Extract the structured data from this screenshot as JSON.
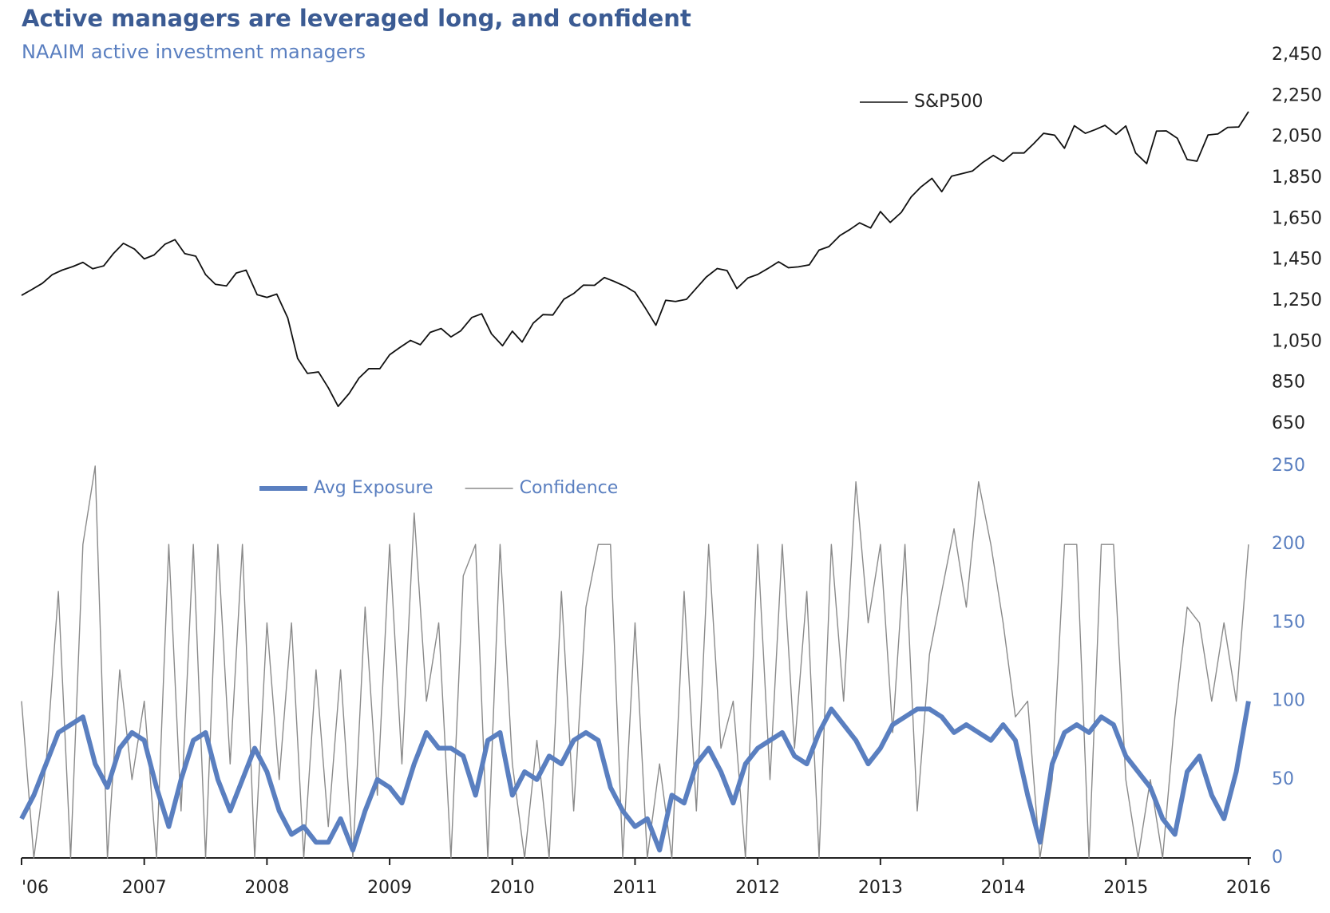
{
  "chart_data": [
    {
      "type": "line",
      "title": "Active managers are leveraged  long, and confident",
      "subtitle": "NAAIM active investment managers",
      "x": [
        2006,
        2006.08,
        2006.17,
        2006.25,
        2006.33,
        2006.42,
        2006.5,
        2006.58,
        2006.67,
        2006.75,
        2006.83,
        2006.92,
        2007,
        2007.08,
        2007.17,
        2007.25,
        2007.33,
        2007.42,
        2007.5,
        2007.58,
        2007.67,
        2007.75,
        2007.83,
        2007.92,
        2008,
        2008.08,
        2008.17,
        2008.25,
        2008.33,
        2008.42,
        2008.5,
        2008.58,
        2008.67,
        2008.75,
        2008.83,
        2008.92,
        2009,
        2009.08,
        2009.17,
        2009.25,
        2009.33,
        2009.42,
        2009.5,
        2009.58,
        2009.67,
        2009.75,
        2009.83,
        2009.92,
        2010,
        2010.08,
        2010.17,
        2010.25,
        2010.33,
        2010.42,
        2010.5,
        2010.58,
        2010.67,
        2010.75,
        2010.83,
        2010.92,
        2011,
        2011.08,
        2011.17,
        2011.25,
        2011.33,
        2011.42,
        2011.5,
        2011.58,
        2011.67,
        2011.75,
        2011.83,
        2011.92,
        2012,
        2012.08,
        2012.17,
        2012.25,
        2012.33,
        2012.42,
        2012.5,
        2012.58,
        2012.67,
        2012.75,
        2012.83,
        2012.92,
        2013,
        2013.08,
        2013.17,
        2013.25,
        2013.33,
        2013.42,
        2013.5,
        2013.58,
        2013.67,
        2013.75,
        2013.83,
        2013.92,
        2014,
        2014.08,
        2014.17,
        2014.25,
        2014.33,
        2014.42,
        2014.5,
        2014.58,
        2014.67,
        2014.75,
        2014.83,
        2014.92,
        2015,
        2015.08,
        2015.17,
        2015.25,
        2015.33,
        2015.42,
        2015.5,
        2015.58,
        2015.67,
        2015.75,
        2015.83,
        2015.92,
        2016
      ],
      "series": [
        {
          "name": "S&P500",
          "color": "#111111",
          "values": [
            1277,
            1304,
            1336,
            1378,
            1400,
            1418,
            1438,
            1407,
            1421,
            1482,
            1531,
            1503,
            1455,
            1474,
            1527,
            1549,
            1481,
            1468,
            1378,
            1331,
            1323,
            1386,
            1400,
            1280,
            1267,
            1283,
            1166,
            969,
            896,
            903,
            826,
            735,
            798,
            873,
            919,
            919,
            987,
            1021,
            1057,
            1036,
            1096,
            1115,
            1074,
            1104,
            1169,
            1187,
            1089,
            1031,
            1102,
            1049,
            1141,
            1183,
            1181,
            1258,
            1286,
            1327,
            1326,
            1364,
            1345,
            1321,
            1292,
            1219,
            1131,
            1253,
            1247,
            1258,
            1312,
            1366,
            1408,
            1398,
            1310,
            1362,
            1379,
            1407,
            1441,
            1412,
            1416,
            1426,
            1498,
            1515,
            1569,
            1598,
            1631,
            1606,
            1686,
            1633,
            1682,
            1757,
            1806,
            1848,
            1783,
            1859,
            1872,
            1884,
            1924,
            1960,
            1931,
            1972,
            1972,
            2018,
            2068,
            2059,
            1995,
            2105,
            2068,
            2086,
            2107,
            2063,
            2104,
            1972,
            1920,
            2079,
            2080,
            2044,
            1940,
            1932,
            2060,
            2065,
            2097,
            2099,
            2174
          ]
        }
      ],
      "xlim": [
        2006,
        2016.02
      ],
      "ylim": [
        650,
        2450
      ],
      "yticks": [
        {
          "value": 2450,
          "label": "2,450"
        },
        {
          "value": 2250,
          "label": "2,250"
        },
        {
          "value": 2050,
          "label": "2,050"
        },
        {
          "value": 1850,
          "label": "1,850"
        },
        {
          "value": 1650,
          "label": "1,650"
        },
        {
          "value": 1450,
          "label": "1,450"
        },
        {
          "value": 1250,
          "label": "1,250"
        },
        {
          "value": 1050,
          "label": "1,050"
        },
        850,
        650
      ]
    },
    {
      "type": "line",
      "x": [
        2006,
        2006.1,
        2006.2,
        2006.3,
        2006.4,
        2006.5,
        2006.6,
        2006.7,
        2006.8,
        2006.9,
        2007,
        2007.1,
        2007.2,
        2007.3,
        2007.4,
        2007.5,
        2007.6,
        2007.7,
        2007.8,
        2007.9,
        2008,
        2008.1,
        2008.2,
        2008.3,
        2008.4,
        2008.5,
        2008.6,
        2008.7,
        2008.8,
        2008.9,
        2009,
        2009.1,
        2009.2,
        2009.3,
        2009.4,
        2009.5,
        2009.6,
        2009.7,
        2009.8,
        2009.9,
        2010,
        2010.1,
        2010.2,
        2010.3,
        2010.4,
        2010.5,
        2010.6,
        2010.7,
        2010.8,
        2010.9,
        2011,
        2011.1,
        2011.2,
        2011.3,
        2011.4,
        2011.5,
        2011.6,
        2011.7,
        2011.8,
        2011.9,
        2012,
        2012.1,
        2012.2,
        2012.3,
        2012.4,
        2012.5,
        2012.6,
        2012.7,
        2012.8,
        2012.9,
        2013,
        2013.1,
        2013.2,
        2013.3,
        2013.4,
        2013.5,
        2013.6,
        2013.7,
        2013.8,
        2013.9,
        2014,
        2014.1,
        2014.2,
        2014.3,
        2014.4,
        2014.5,
        2014.6,
        2014.7,
        2014.8,
        2014.9,
        2015,
        2015.1,
        2015.2,
        2015.3,
        2015.4,
        2015.5,
        2015.6,
        2015.7,
        2015.8,
        2015.9,
        2016
      ],
      "series": [
        {
          "name": "Avg Exposure",
          "color": "#5a7fc0",
          "values": [
            25,
            40,
            60,
            80,
            85,
            90,
            60,
            45,
            70,
            80,
            75,
            45,
            20,
            50,
            75,
            80,
            50,
            30,
            50,
            70,
            55,
            30,
            15,
            20,
            10,
            10,
            25,
            5,
            30,
            50,
            45,
            35,
            60,
            80,
            70,
            70,
            65,
            40,
            75,
            80,
            40,
            55,
            50,
            65,
            60,
            75,
            80,
            75,
            45,
            30,
            20,
            25,
            5,
            40,
            35,
            60,
            70,
            55,
            35,
            60,
            70,
            75,
            80,
            65,
            60,
            80,
            95,
            85,
            75,
            60,
            70,
            85,
            90,
            95,
            95,
            90,
            80,
            85,
            80,
            75,
            85,
            75,
            40,
            10,
            60,
            80,
            85,
            80,
            90,
            85,
            65,
            55,
            45,
            25,
            15,
            55,
            65,
            40,
            25,
            55,
            100
          ]
        },
        {
          "name": "Confidence",
          "color": "#8a8a8a",
          "values": [
            100,
            0,
            60,
            170,
            0,
            200,
            250,
            0,
            120,
            50,
            100,
            0,
            200,
            30,
            200,
            0,
            200,
            60,
            200,
            0,
            150,
            50,
            150,
            0,
            120,
            20,
            120,
            0,
            160,
            40,
            200,
            60,
            220,
            100,
            150,
            0,
            180,
            200,
            0,
            200,
            60,
            0,
            75,
            0,
            170,
            30,
            160,
            200,
            200,
            0,
            150,
            0,
            60,
            0,
            170,
            30,
            200,
            70,
            100,
            0,
            200,
            50,
            200,
            70,
            170,
            0,
            200,
            100,
            240,
            150,
            200,
            80,
            200,
            30,
            130,
            170,
            210,
            160,
            240,
            200,
            150,
            90,
            100,
            0,
            50,
            200,
            200,
            0,
            200,
            200,
            50,
            0,
            50,
            0,
            90,
            160,
            150,
            100,
            150,
            100,
            200
          ]
        }
      ],
      "xlim": [
        2006,
        2016.02
      ],
      "ylim": [
        0,
        250
      ],
      "yticks": [
        0,
        50,
        100,
        150,
        200,
        250
      ],
      "xticks": [
        {
          "value": 2006,
          "label": "'06"
        },
        2007,
        2008,
        2009,
        2010,
        2011,
        2012,
        2013,
        2014,
        2015,
        2016
      ]
    }
  ]
}
